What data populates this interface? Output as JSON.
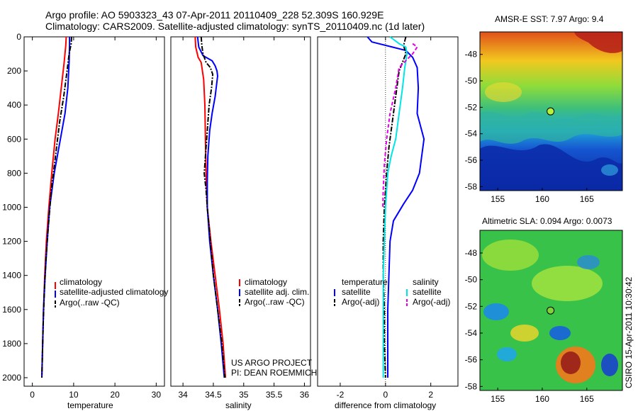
{
  "title_line1": "Argo profile: AO 5903323_43 07-Apr-2011 20110409_228 52.309S 160.929E",
  "title_line2": "Climatology: CARS2009. Satellite-adjusted climatology: synTS_20110409.nc (1d later)",
  "credits": [
    "US ARGO PROJECT",
    "PI: DEAN ROEMMICH"
  ],
  "side_stamp": "CSIRO 15-Apr-2011 10:30:42",
  "colors": {
    "red": "#ff0000",
    "blue": "#0000ff",
    "black": "#000000",
    "cyan": "#00e6e6",
    "magenta": "#e600e6"
  },
  "chart_data": [
    {
      "type": "line",
      "xlabel": "temperature",
      "xlim": [
        -2,
        32
      ],
      "xticks": [
        0,
        10,
        20,
        30
      ],
      "ylim": [
        0,
        2050
      ],
      "yticks": [
        0,
        200,
        400,
        600,
        800,
        1000,
        1200,
        1400,
        1600,
        1800,
        2000
      ],
      "ydir": "reverse",
      "legend": {
        "position": "lower-right",
        "entries": [
          "climatology",
          "satellite-adjusted climatology",
          "Argo(..raw -QC)"
        ]
      },
      "series": [
        {
          "name": "climatology",
          "color": "red",
          "dash": "solid",
          "points": [
            [
              8.2,
              0
            ],
            [
              8.1,
              50
            ],
            [
              7.7,
              150
            ],
            [
              7.0,
              300
            ],
            [
              6.3,
              450
            ],
            [
              5.5,
              600
            ],
            [
              4.7,
              800
            ],
            [
              4.0,
              1000
            ],
            [
              3.4,
              1200
            ],
            [
              3.0,
              1400
            ],
            [
              2.7,
              1600
            ],
            [
              2.5,
              1800
            ],
            [
              2.3,
              2000
            ]
          ]
        },
        {
          "name": "satellite-adjusted climatology",
          "color": "blue",
          "dash": "solid",
          "points": [
            [
              9.0,
              0
            ],
            [
              9.0,
              50
            ],
            [
              8.9,
              150
            ],
            [
              8.6,
              300
            ],
            [
              7.9,
              450
            ],
            [
              6.8,
              600
            ],
            [
              5.3,
              800
            ],
            [
              4.2,
              1000
            ],
            [
              3.6,
              1200
            ],
            [
              3.1,
              1400
            ],
            [
              2.7,
              1600
            ],
            [
              2.5,
              1800
            ],
            [
              2.3,
              2000
            ]
          ]
        },
        {
          "name": "Argo(..raw -QC)",
          "color": "black",
          "dash": "dashdot",
          "points": [
            [
              9.5,
              0
            ],
            [
              9.4,
              40
            ],
            [
              8.9,
              100
            ],
            [
              8.4,
              200
            ],
            [
              7.6,
              350
            ],
            [
              6.6,
              500
            ],
            [
              5.6,
              700
            ],
            [
              4.6,
              900
            ],
            [
              3.9,
              1100
            ],
            [
              3.3,
              1300
            ],
            [
              2.9,
              1500
            ],
            [
              2.6,
              1700
            ],
            [
              2.4,
              1900
            ],
            [
              2.3,
              2000
            ]
          ]
        }
      ]
    },
    {
      "type": "line",
      "xlabel": "salinity",
      "xlim": [
        33.8,
        36.1
      ],
      "xticks": [
        34,
        34.5,
        35,
        35.5,
        36
      ],
      "ylim": [
        0,
        2050
      ],
      "ydir": "reverse",
      "legend": {
        "position": "lower-right",
        "entries": [
          "climatology",
          "satellite adj. clim.",
          "Argo(..raw -QC)"
        ]
      },
      "series": [
        {
          "name": "climatology",
          "color": "red",
          "dash": "solid",
          "points": [
            [
              34.2,
              0
            ],
            [
              34.21,
              60
            ],
            [
              34.25,
              120
            ],
            [
              34.3,
              150
            ],
            [
              34.34,
              250
            ],
            [
              34.36,
              400
            ],
            [
              34.37,
              600
            ],
            [
              34.38,
              800
            ],
            [
              34.4,
              1000
            ],
            [
              34.46,
              1200
            ],
            [
              34.53,
              1400
            ],
            [
              34.6,
              1600
            ],
            [
              34.66,
              1800
            ],
            [
              34.7,
              2000
            ]
          ]
        },
        {
          "name": "satellite adj. clim.",
          "color": "blue",
          "dash": "solid",
          "points": [
            [
              34.24,
              0
            ],
            [
              34.26,
              60
            ],
            [
              34.33,
              110
            ],
            [
              34.48,
              140
            ],
            [
              34.53,
              170
            ],
            [
              34.56,
              200
            ],
            [
              34.57,
              230
            ],
            [
              34.56,
              260
            ],
            [
              34.53,
              350
            ],
            [
              34.48,
              450
            ],
            [
              34.44,
              550
            ],
            [
              34.41,
              700
            ],
            [
              34.4,
              850
            ],
            [
              34.4,
              1000
            ],
            [
              34.44,
              1200
            ],
            [
              34.5,
              1400
            ],
            [
              34.57,
              1600
            ],
            [
              34.63,
              1800
            ],
            [
              34.68,
              2000
            ]
          ]
        },
        {
          "name": "Argo(..raw -QC)",
          "color": "black",
          "dash": "dashdot",
          "points": [
            [
              34.3,
              0
            ],
            [
              34.31,
              50
            ],
            [
              34.33,
              100
            ],
            [
              34.38,
              150
            ],
            [
              34.45,
              180
            ],
            [
              34.49,
              220
            ],
            [
              34.47,
              300
            ],
            [
              34.43,
              400
            ],
            [
              34.4,
              550
            ],
            [
              34.37,
              700
            ],
            [
              34.35,
              800
            ],
            [
              34.38,
              900
            ],
            [
              34.4,
              1000
            ],
            [
              34.45,
              1200
            ],
            [
              34.5,
              1400
            ],
            [
              34.57,
              1600
            ],
            [
              34.64,
              1800
            ],
            [
              34.69,
              2000
            ]
          ]
        }
      ]
    },
    {
      "type": "line",
      "xlabel": "difference from climatology",
      "xlim": [
        -3,
        3.2
      ],
      "xticks": [
        -2,
        0,
        2
      ],
      "ylim": [
        0,
        2050
      ],
      "ydir": "reverse",
      "zero_line": 0,
      "legend": {
        "position": "lower-right",
        "groups": [
          {
            "heading": "temperature",
            "entries": [
              "satellite",
              "Argo(-adj)"
            ]
          },
          {
            "heading": "salinity",
            "entries": [
              "satellite",
              "Argo(-adj)"
            ]
          }
        ]
      },
      "series": [
        {
          "name": "satellite",
          "variable": "temperature",
          "color": "blue",
          "dash": "solid",
          "points": [
            [
              -0.8,
              0
            ],
            [
              -0.6,
              30
            ],
            [
              0.3,
              60
            ],
            [
              0.9,
              80
            ],
            [
              1.2,
              120
            ],
            [
              1.4,
              180
            ],
            [
              1.45,
              300
            ],
            [
              1.4,
              450
            ],
            [
              1.7,
              600
            ],
            [
              1.6,
              700
            ],
            [
              1.5,
              800
            ],
            [
              1.2,
              900
            ],
            [
              0.8,
              980
            ],
            [
              0.35,
              1080
            ],
            [
              0.2,
              1200
            ],
            [
              0.15,
              1400
            ],
            [
              0.1,
              1600
            ],
            [
              0.1,
              1800
            ],
            [
              0.1,
              2000
            ]
          ]
        },
        {
          "name": "Argo(-adj)",
          "variable": "temperature",
          "color": "black",
          "dash": "dashdot",
          "points": [
            [
              0.9,
              0
            ],
            [
              0.8,
              50
            ],
            [
              0.9,
              100
            ],
            [
              0.6,
              200
            ],
            [
              0.45,
              350
            ],
            [
              0.3,
              500
            ],
            [
              0.15,
              650
            ],
            [
              0.05,
              800
            ],
            [
              -0.05,
              1000
            ],
            [
              -0.1,
              1200
            ],
            [
              -0.1,
              1400
            ],
            [
              -0.05,
              1600
            ],
            [
              -0.05,
              1800
            ],
            [
              0,
              2000
            ]
          ]
        },
        {
          "name": "satellite",
          "variable": "salinity",
          "color": "cyan",
          "dash": "solid",
          "points": [
            [
              0.2,
              0
            ],
            [
              0.6,
              40
            ],
            [
              0.9,
              60
            ],
            [
              0.95,
              100
            ],
            [
              0.85,
              180
            ],
            [
              0.75,
              300
            ],
            [
              0.6,
              450
            ],
            [
              0.45,
              600
            ],
            [
              0.25,
              700
            ],
            [
              0.1,
              800
            ],
            [
              0.0,
              1000
            ],
            [
              -0.05,
              1200
            ],
            [
              -0.1,
              1400
            ],
            [
              -0.1,
              1600
            ],
            [
              -0.1,
              1800
            ],
            [
              -0.1,
              2000
            ]
          ]
        },
        {
          "name": "Argo(-adj)",
          "variable": "salinity",
          "color": "magenta",
          "dash": "dashed",
          "points": [
            [
              1.2,
              40
            ],
            [
              1.4,
              60
            ],
            [
              1.2,
              100
            ],
            [
              0.6,
              180
            ],
            [
              0.45,
              300
            ],
            [
              0.2,
              450
            ],
            [
              0.05,
              600
            ],
            [
              -0.05,
              750
            ],
            [
              -0.1,
              900
            ],
            [
              -0.12,
              1000
            ]
          ]
        }
      ]
    },
    {
      "type": "heatmap",
      "title": "AMSR-E SST: 7.97 Argo: 9.4",
      "xlim": [
        153,
        169
      ],
      "ylim": [
        -58.3,
        -46.3
      ],
      "xticks": [
        155,
        160,
        165
      ],
      "yticks": [
        -48,
        -50,
        -52,
        -54,
        -56,
        -58
      ],
      "argo_position": [
        160.93,
        -52.31
      ],
      "argo_marker_fill": "#b6f23a"
    },
    {
      "type": "heatmap",
      "title": "Altimetric SLA: 0.094 Argo: 0.0073",
      "xlim": [
        153,
        169
      ],
      "ylim": [
        -58.3,
        -46.3
      ],
      "xticks": [
        155,
        160,
        165
      ],
      "yticks": [
        -48,
        -50,
        -52,
        -54,
        -56,
        -58
      ],
      "argo_position": [
        160.93,
        -52.31
      ],
      "argo_marker_fill": "#7fd33a"
    }
  ]
}
